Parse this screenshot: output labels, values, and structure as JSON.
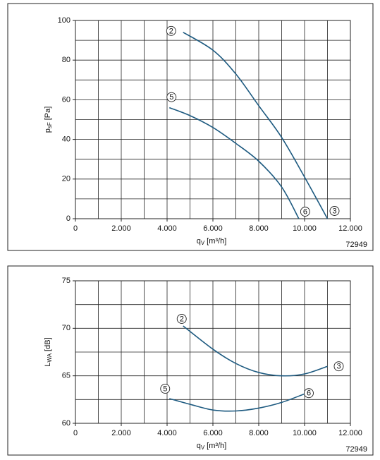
{
  "chart_data": [
    {
      "type": "line",
      "ylabel": {
        "symbol": "p",
        "subscript": "sF",
        "unit": "[Pa]"
      },
      "xlabel": {
        "symbol": "q",
        "subscript": "V",
        "unit": "[m³/h]"
      },
      "code": "72949",
      "xlim": [
        0,
        12000
      ],
      "ylim": [
        0,
        100
      ],
      "xticks": [
        0,
        {
          "value": 2000,
          "label": "2.000"
        },
        {
          "value": 4000,
          "label": "4.000"
        },
        {
          "value": 6000,
          "label": "6.000"
        },
        {
          "value": 8000,
          "label": "8.000"
        },
        {
          "value": 10000,
          "label": "10.000"
        },
        {
          "value": 12000,
          "label": "12.000"
        }
      ],
      "yticks": [
        0,
        20,
        40,
        60,
        80,
        100
      ],
      "xgrid": [
        1000,
        2000,
        3000,
        4000,
        5000,
        6000,
        7000,
        8000,
        9000,
        10000,
        11000
      ],
      "ygrid": [
        10,
        20,
        30,
        40,
        50,
        60,
        70,
        80,
        90
      ],
      "series": [
        {
          "start_label": "2",
          "end_label": "3",
          "color": "#1d5a80",
          "x": [
            4700,
            6000,
            7000,
            8000,
            9000,
            10000,
            11000
          ],
          "values": [
            94,
            85,
            73,
            57,
            41,
            21,
            0
          ]
        },
        {
          "start_label": "5",
          "end_label": "6",
          "color": "#1d5a80",
          "x": [
            4100,
            5000,
            6000,
            7000,
            8000,
            9000,
            9750
          ],
          "values": [
            56,
            52,
            46,
            38,
            29,
            16,
            0
          ]
        }
      ]
    },
    {
      "type": "line",
      "ylabel": {
        "symbol": "L",
        "subscript": "WA",
        "unit": "[dB]"
      },
      "xlabel": {
        "symbol": "q",
        "subscript": "V",
        "unit": "[m³/h]"
      },
      "code": "72949",
      "xlim": [
        0,
        12000
      ],
      "ylim": [
        60,
        75
      ],
      "xticks": [
        0,
        {
          "value": 2000,
          "label": "2.000"
        },
        {
          "value": 4000,
          "label": "4.000"
        },
        {
          "value": 6000,
          "label": "6.000"
        },
        {
          "value": 8000,
          "label": "8.000"
        },
        {
          "value": 10000,
          "label": "10.000"
        },
        {
          "value": 12000,
          "label": "12.000"
        }
      ],
      "yticks": [
        60,
        65,
        70,
        75
      ],
      "xgrid": [
        1000,
        2000,
        3000,
        4000,
        5000,
        6000,
        7000,
        8000,
        9000,
        10000,
        11000
      ],
      "ygrid": [
        62.5,
        65,
        67.5,
        70,
        72.5
      ],
      "series": [
        {
          "start_label": "2",
          "end_label": "3",
          "color": "#1d5a80",
          "x": [
            4700,
            6000,
            7000,
            8000,
            9000,
            10000,
            11000
          ],
          "values": [
            70.25,
            67.8,
            66.3,
            65.35,
            65.0,
            65.2,
            66.0
          ]
        },
        {
          "start_label": "5",
          "end_label": "6",
          "color": "#1d5a80",
          "x": [
            4100,
            5000,
            6000,
            7000,
            8000,
            9000,
            10000
          ],
          "values": [
            62.6,
            62.0,
            61.4,
            61.3,
            61.6,
            62.2,
            63.1
          ]
        }
      ]
    }
  ]
}
